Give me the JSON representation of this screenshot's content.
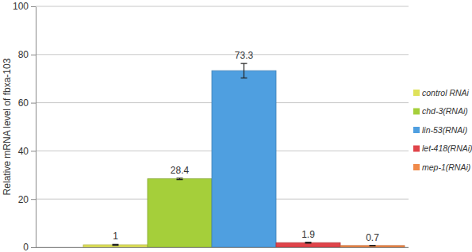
{
  "chart_data": {
    "type": "bar",
    "y_label": "Relative mRNA level of fbxa-103",
    "categories": [
      "control RNAi",
      "chd-3(RNAi)",
      "lin-53(RNAi)",
      "let-418(RNAi)",
      "mep-1(RNAi)"
    ],
    "values": [
      1,
      28.4,
      73.3,
      1.9,
      0.7
    ],
    "errors": [
      0.2,
      0.3,
      3.0,
      0.2,
      0.1
    ],
    "colors": [
      "#dfe25a",
      "#a5cf3a",
      "#4f9fe0",
      "#e0444a",
      "#f08a4a"
    ],
    "ylim": [
      0,
      100
    ],
    "yticks": [
      0,
      20,
      40,
      60,
      80,
      100
    ],
    "grid": true,
    "legend": "right",
    "data_labels": true,
    "tick_labels": "y"
  }
}
